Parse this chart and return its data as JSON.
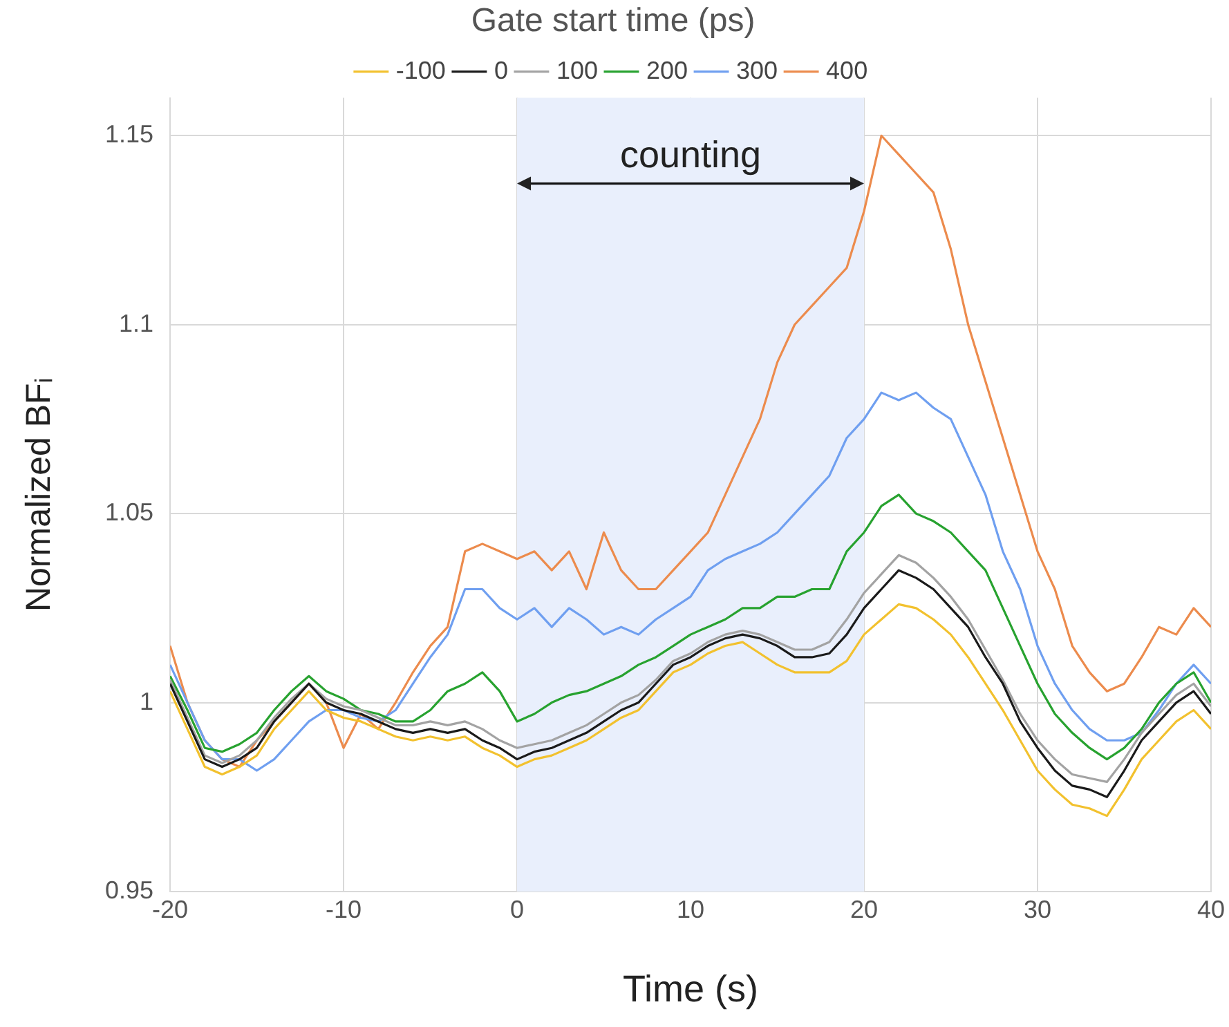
{
  "chart_data": {
    "type": "line",
    "xlabel": "Time (s)",
    "ylabel": "Normalized BFᵢ",
    "legend_title": "Gate start time (ps)",
    "legend": "top",
    "grid": true,
    "marker": "none",
    "line_style": "solid",
    "x": [
      -20,
      -19,
      -18,
      -17,
      -16,
      -15,
      -14,
      -13,
      -12,
      -11,
      -10,
      -9,
      -8,
      -7,
      -6,
      -5,
      -4,
      -3,
      -2,
      -1,
      0,
      1,
      2,
      3,
      4,
      5,
      6,
      7,
      8,
      9,
      10,
      11,
      12,
      13,
      14,
      15,
      16,
      17,
      18,
      19,
      20,
      21,
      22,
      23,
      24,
      25,
      26,
      27,
      28,
      29,
      30,
      31,
      32,
      33,
      34,
      35,
      36,
      37,
      38,
      39,
      40
    ],
    "xlim": [
      -20,
      40
    ],
    "xticks": [
      -20,
      -10,
      0,
      10,
      20,
      30,
      40
    ],
    "ylim": [
      0.95,
      1.16
    ],
    "yticks": [
      0.95,
      1,
      1.05,
      1.1,
      1.15
    ],
    "bands": [
      {
        "axis": "x",
        "from": 0,
        "to": 20,
        "label": "counting",
        "color": "#e9effc"
      }
    ],
    "series": [
      {
        "name": "-100",
        "color": "#f2c12e",
        "values": [
          1.003,
          0.993,
          0.983,
          0.981,
          0.983,
          0.986,
          0.993,
          0.998,
          1.003,
          0.998,
          0.996,
          0.995,
          0.993,
          0.991,
          0.99,
          0.991,
          0.99,
          0.991,
          0.988,
          0.986,
          0.983,
          0.985,
          0.986,
          0.988,
          0.99,
          0.993,
          0.996,
          0.998,
          1.003,
          1.008,
          1.01,
          1.013,
          1.015,
          1.016,
          1.013,
          1.01,
          1.008,
          1.008,
          1.008,
          1.011,
          1.018,
          1.022,
          1.026,
          1.025,
          1.022,
          1.018,
          1.012,
          1.005,
          0.998,
          0.99,
          0.982,
          0.977,
          0.973,
          0.972,
          0.97,
          0.977,
          0.985,
          0.99,
          0.995,
          0.998,
          0.993
        ]
      },
      {
        "name": "0",
        "color": "#1a1a1a",
        "values": [
          1.005,
          0.995,
          0.985,
          0.983,
          0.985,
          0.988,
          0.995,
          1.0,
          1.005,
          1.0,
          0.998,
          0.997,
          0.995,
          0.993,
          0.992,
          0.993,
          0.992,
          0.993,
          0.99,
          0.988,
          0.985,
          0.987,
          0.988,
          0.99,
          0.992,
          0.995,
          0.998,
          1.0,
          1.005,
          1.01,
          1.012,
          1.015,
          1.017,
          1.018,
          1.017,
          1.015,
          1.012,
          1.012,
          1.013,
          1.018,
          1.025,
          1.03,
          1.035,
          1.033,
          1.03,
          1.025,
          1.02,
          1.012,
          1.005,
          0.995,
          0.988,
          0.982,
          0.978,
          0.977,
          0.975,
          0.982,
          0.99,
          0.995,
          1.0,
          1.003,
          0.997
        ]
      },
      {
        "name": "100",
        "color": "#a3a3a3",
        "values": [
          1.006,
          0.996,
          0.986,
          0.984,
          0.986,
          0.99,
          0.996,
          1.001,
          1.005,
          1.001,
          0.999,
          0.998,
          0.996,
          0.994,
          0.994,
          0.995,
          0.994,
          0.995,
          0.993,
          0.99,
          0.988,
          0.989,
          0.99,
          0.992,
          0.994,
          0.997,
          1.0,
          1.002,
          1.006,
          1.011,
          1.013,
          1.016,
          1.018,
          1.019,
          1.018,
          1.016,
          1.014,
          1.014,
          1.016,
          1.022,
          1.029,
          1.034,
          1.039,
          1.037,
          1.033,
          1.028,
          1.022,
          1.014,
          1.006,
          0.997,
          0.99,
          0.985,
          0.981,
          0.98,
          0.979,
          0.985,
          0.992,
          0.997,
          1.002,
          1.005,
          0.999
        ]
      },
      {
        "name": "200",
        "color": "#27a22f",
        "values": [
          1.007,
          0.998,
          0.988,
          0.987,
          0.989,
          0.992,
          0.998,
          1.003,
          1.007,
          1.003,
          1.001,
          0.998,
          0.997,
          0.995,
          0.995,
          0.998,
          1.003,
          1.005,
          1.008,
          1.003,
          0.995,
          0.997,
          1.0,
          1.002,
          1.003,
          1.005,
          1.007,
          1.01,
          1.012,
          1.015,
          1.018,
          1.02,
          1.022,
          1.025,
          1.025,
          1.028,
          1.028,
          1.03,
          1.03,
          1.04,
          1.045,
          1.052,
          1.055,
          1.05,
          1.048,
          1.045,
          1.04,
          1.035,
          1.025,
          1.015,
          1.005,
          0.997,
          0.992,
          0.988,
          0.985,
          0.988,
          0.993,
          1.0,
          1.005,
          1.008,
          1.0
        ]
      },
      {
        "name": "300",
        "color": "#6f9ff0",
        "values": [
          1.01,
          1.0,
          0.99,
          0.985,
          0.985,
          0.982,
          0.985,
          0.99,
          0.995,
          0.998,
          0.998,
          0.996,
          0.995,
          0.998,
          1.005,
          1.012,
          1.018,
          1.03,
          1.03,
          1.025,
          1.022,
          1.025,
          1.02,
          1.025,
          1.022,
          1.018,
          1.02,
          1.018,
          1.022,
          1.025,
          1.028,
          1.035,
          1.038,
          1.04,
          1.042,
          1.045,
          1.05,
          1.055,
          1.06,
          1.07,
          1.075,
          1.082,
          1.08,
          1.082,
          1.078,
          1.075,
          1.065,
          1.055,
          1.04,
          1.03,
          1.015,
          1.005,
          0.998,
          0.993,
          0.99,
          0.99,
          0.992,
          0.998,
          1.005,
          1.01,
          1.005
        ]
      },
      {
        "name": "400",
        "color": "#ec8b4d",
        "values": [
          1.015,
          1.0,
          0.99,
          0.985,
          0.983,
          0.99,
          0.995,
          1.0,
          1.005,
          1.0,
          0.988,
          0.997,
          0.993,
          1.0,
          1.008,
          1.015,
          1.02,
          1.04,
          1.042,
          1.04,
          1.038,
          1.04,
          1.035,
          1.04,
          1.03,
          1.045,
          1.035,
          1.03,
          1.03,
          1.035,
          1.04,
          1.045,
          1.055,
          1.065,
          1.075,
          1.09,
          1.1,
          1.105,
          1.11,
          1.115,
          1.13,
          1.15,
          1.145,
          1.14,
          1.135,
          1.12,
          1.1,
          1.085,
          1.07,
          1.055,
          1.04,
          1.03,
          1.015,
          1.008,
          1.003,
          1.005,
          1.012,
          1.02,
          1.018,
          1.025,
          1.02
        ]
      }
    ]
  }
}
